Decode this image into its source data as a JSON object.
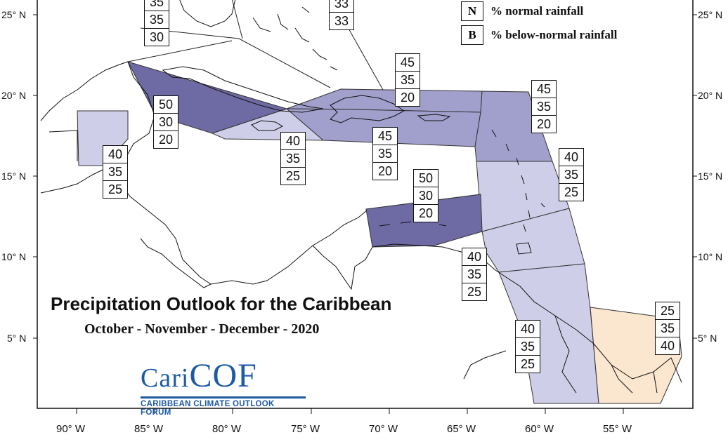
{
  "map": {
    "title": "Precipitation Outlook for the Caribbean",
    "subtitle": "October - November - December - 2020",
    "lat_labels": [
      "25° N",
      "20° N",
      "15° N",
      "10° N",
      "5° N"
    ],
    "lon_labels": [
      "90° W",
      "85° W",
      "80° W",
      "75° W",
      "70° W",
      "65° W",
      "60° W",
      "55° W"
    ],
    "colors": {
      "strong_above": "#6e6aa3",
      "moderate_above": "#a19fcc",
      "slight_above": "#cfcee8",
      "below": "#fbe6cf",
      "outline": "#111111"
    }
  },
  "legend": [
    {
      "key": "N",
      "text": "% normal rainfall"
    },
    {
      "key": "B",
      "text": "% below-normal rainfall"
    }
  ],
  "regions": [
    {
      "id": "top-left-partial",
      "values": [
        "35",
        "35",
        "30"
      ]
    },
    {
      "id": "bahamas-partial",
      "values": [
        "33",
        "33"
      ]
    },
    {
      "id": "cuba",
      "values": [
        "50",
        "30",
        "20"
      ]
    },
    {
      "id": "belize",
      "values": [
        "40",
        "35",
        "25"
      ]
    },
    {
      "id": "jamaica",
      "values": [
        "40",
        "35",
        "25"
      ]
    },
    {
      "id": "hispaniola-north",
      "values": [
        "45",
        "35",
        "20"
      ]
    },
    {
      "id": "hispaniola-south",
      "values": [
        "45",
        "35",
        "20"
      ]
    },
    {
      "id": "leeward-islands",
      "values": [
        "45",
        "35",
        "20"
      ]
    },
    {
      "id": "windward-islands",
      "values": [
        "40",
        "35",
        "25"
      ]
    },
    {
      "id": "abc-islands",
      "values": [
        "50",
        "30",
        "20"
      ]
    },
    {
      "id": "trinidad",
      "values": [
        "40",
        "35",
        "25"
      ]
    },
    {
      "id": "guyana",
      "values": [
        "40",
        "35",
        "25"
      ]
    },
    {
      "id": "french-guiana-suriname",
      "values": [
        "25",
        "35",
        "40"
      ]
    }
  ],
  "logo": {
    "name_part1": "Cari",
    "name_part2": "COF",
    "tagline": "CARIBBEAN CLIMATE OUTLOOK FORUM"
  }
}
